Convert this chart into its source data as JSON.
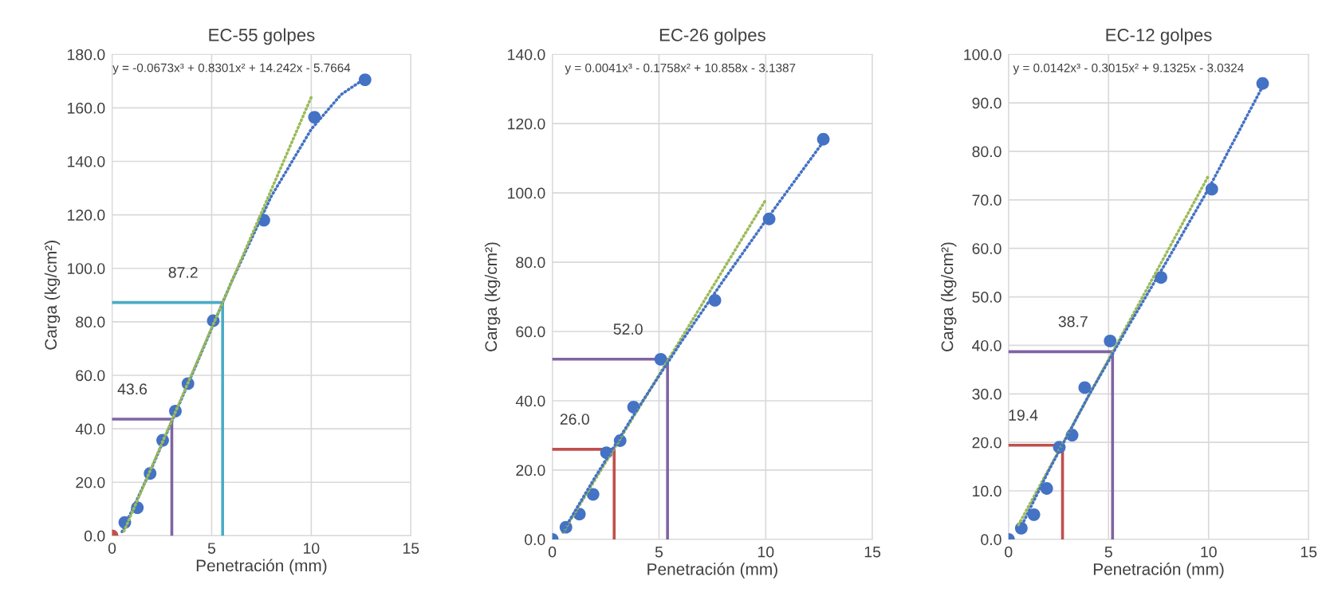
{
  "chart_data": [
    {
      "type": "scatter",
      "title": "EC-55 golpes",
      "xlabel": "Penetración (mm)",
      "ylabel": "Carga (kg/cm²)",
      "xlim": [
        0,
        15
      ],
      "xticks": [
        0,
        5,
        10,
        15
      ],
      "ylim": [
        0,
        180
      ],
      "yticks": [
        {
          "value": 0,
          "label": "0.0"
        },
        {
          "value": 20,
          "label": "20.0"
        },
        {
          "value": 40,
          "label": "40.0"
        },
        {
          "value": 60,
          "label": "60.0"
        },
        {
          "value": 80,
          "label": "80.0"
        },
        {
          "value": 100,
          "label": "100.0"
        },
        {
          "value": 120,
          "label": "120.0"
        },
        {
          "value": 140,
          "label": "140.0"
        },
        {
          "value": 160,
          "label": "160.0"
        },
        {
          "value": 180,
          "label": "180.0"
        }
      ],
      "grid": true,
      "series": [
        {
          "type": "line",
          "color": "#8064a2",
          "x": [
            0,
            3.0,
            3.0
          ],
          "values": [
            43.6,
            43.6,
            0
          ],
          "line_style": "solid"
        },
        {
          "type": "line",
          "color": "#4bacc6",
          "x": [
            0,
            5.55,
            5.55
          ],
          "values": [
            87.2,
            87.2,
            0
          ],
          "line_style": "solid"
        },
        {
          "type": "line",
          "color": "#4472c4",
          "x": [
            0.5,
            2,
            4,
            6,
            8,
            10,
            11.5,
            12.7
          ],
          "values": [
            1.5,
            25.5,
            60,
            95,
            127,
            152,
            165,
            171
          ],
          "line_style": "dotted"
        },
        {
          "type": "line",
          "color": "#9bbb59",
          "x": [
            0.6,
            10
          ],
          "values": [
            1.7,
            164
          ],
          "line_style": "dotted"
        },
        {
          "color": "#4472c4",
          "marker": "circle",
          "x": [
            0.64,
            1.27,
            1.91,
            2.54,
            3.18,
            3.81,
            5.08,
            7.62,
            10.16,
            12.7
          ],
          "values": [
            5,
            10.5,
            23.3,
            35.7,
            46.6,
            56.9,
            80.4,
            118,
            156.5,
            170.5
          ]
        },
        {
          "color": "#c0504d",
          "marker": "circle",
          "x": [
            0
          ],
          "values": [
            0
          ]
        }
      ],
      "annotations": [
        "y = -0.0673x³ + 0.8301x² + 14.242x - 5.7664",
        {
          "text": "43.6",
          "x": 3.0,
          "y": 43.6
        },
        {
          "text": "87.2",
          "x": 5.55,
          "y": 87.2
        }
      ]
    },
    {
      "type": "scatter",
      "title": "EC-26 golpes",
      "xlabel": "Penetración (mm)",
      "ylabel": "Carga (kg/cm²)",
      "xlim": [
        0,
        15
      ],
      "xticks": [
        0,
        5,
        10,
        15
      ],
      "ylim": [
        0,
        140
      ],
      "yticks": [
        {
          "value": 0,
          "label": "0.0"
        },
        {
          "value": 20,
          "label": "20.0"
        },
        {
          "value": 40,
          "label": "40.0"
        },
        {
          "value": 60,
          "label": "60.0"
        },
        {
          "value": 80,
          "label": "80.0"
        },
        {
          "value": 100,
          "label": "100.0"
        },
        {
          "value": 120,
          "label": "120.0"
        },
        {
          "value": 140,
          "label": "140.0"
        }
      ],
      "grid": true,
      "series": [
        {
          "type": "line",
          "color": "#c0504d",
          "x": [
            0,
            2.9,
            2.9
          ],
          "values": [
            26.0,
            26.0,
            0
          ],
          "line_style": "solid"
        },
        {
          "type": "line",
          "color": "#8064a2",
          "x": [
            0,
            5.4,
            5.4
          ],
          "values": [
            52.0,
            52.0,
            0
          ],
          "line_style": "solid"
        },
        {
          "type": "line",
          "color": "#9bbb59",
          "x": [
            0.5,
            10
          ],
          "values": [
            2,
            98
          ],
          "line_style": "dotted"
        },
        {
          "type": "line",
          "color": "#4472c4",
          "x": [
            0.5,
            2,
            4,
            6,
            8,
            10,
            12.7
          ],
          "values": [
            2.3,
            17.9,
            37.7,
            56.6,
            74.6,
            92,
            114.8
          ],
          "line_style": "dotted"
        },
        {
          "color": "#4472c4",
          "marker": "circle",
          "x": [
            0,
            0.64,
            1.27,
            1.91,
            2.54,
            3.18,
            3.81,
            5.08,
            7.62,
            10.16,
            12.7
          ],
          "values": [
            0,
            3.5,
            7.3,
            13,
            25,
            28.5,
            38.2,
            52,
            69,
            92.5,
            115.5
          ]
        }
      ],
      "annotations": [
        "y = 0.0041x³ - 0.1758x² + 10.858x - 3.1387",
        {
          "text": "26.0",
          "x": 2.9,
          "y": 26.0
        },
        {
          "text": "52.0",
          "x": 5.4,
          "y": 52.0
        }
      ]
    },
    {
      "type": "scatter",
      "title": "EC-12 golpes",
      "xlabel": "Penetración (mm)",
      "ylabel": "Carga (kg/cm²)",
      "xlim": [
        0,
        15
      ],
      "xticks": [
        0,
        5,
        10,
        15
      ],
      "ylim": [
        0,
        100
      ],
      "yticks": [
        {
          "value": 0,
          "label": "0.0"
        },
        {
          "value": 10,
          "label": "10.0"
        },
        {
          "value": 20,
          "label": "20.0"
        },
        {
          "value": 30,
          "label": "30.0"
        },
        {
          "value": 40,
          "label": "40.0"
        },
        {
          "value": 50,
          "label": "50.0"
        },
        {
          "value": 60,
          "label": "60.0"
        },
        {
          "value": 70,
          "label": "70.0"
        },
        {
          "value": 80,
          "label": "80.0"
        },
        {
          "value": 90,
          "label": "90.0"
        },
        {
          "value": 100,
          "label": "100.0"
        }
      ],
      "grid": true,
      "series": [
        {
          "type": "line",
          "color": "#c0504d",
          "x": [
            0,
            2.7,
            2.7
          ],
          "values": [
            19.4,
            19.4,
            0
          ],
          "line_style": "solid"
        },
        {
          "type": "line",
          "color": "#8064a2",
          "x": [
            0,
            5.2,
            5.2
          ],
          "values": [
            38.7,
            38.7,
            0
          ],
          "line_style": "solid"
        },
        {
          "type": "line",
          "color": "#9bbb59",
          "x": [
            0.5,
            10
          ],
          "values": [
            3,
            75
          ],
          "line_style": "dotted"
        },
        {
          "type": "line",
          "color": "#4472c4",
          "x": [
            0.5,
            2,
            4,
            6,
            8,
            10,
            12.7
          ],
          "values": [
            1.5,
            14.1,
            29.6,
            44,
            58,
            72.3,
            93.4
          ],
          "line_style": "dotted"
        },
        {
          "color": "#4472c4",
          "marker": "circle",
          "x": [
            0,
            0.64,
            1.27,
            1.91,
            2.54,
            3.18,
            3.81,
            5.08,
            7.62,
            10.16,
            12.7
          ],
          "values": [
            0,
            2.3,
            5.1,
            10.5,
            19,
            21.5,
            31.3,
            40.9,
            54,
            72.2,
            94
          ]
        }
      ],
      "annotations": [
        "y = 0.0142x³ - 0.3015x² + 9.1325x - 3.0324",
        {
          "text": "19.4",
          "x": 2.7,
          "y": 19.4
        },
        {
          "text": "38.7",
          "x": 5.2,
          "y": 38.7
        }
      ]
    }
  ]
}
